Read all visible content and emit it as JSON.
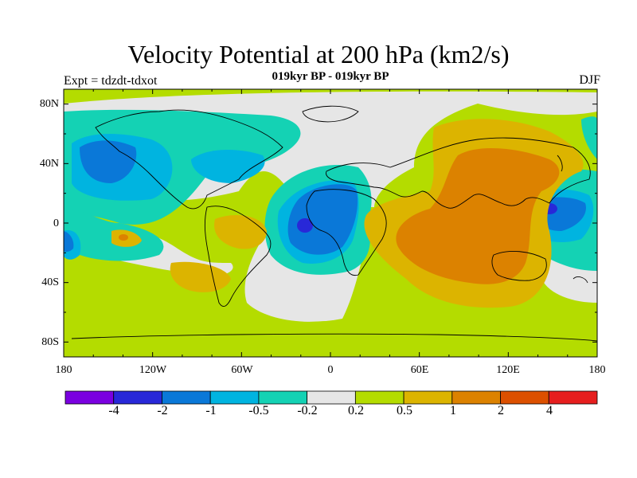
{
  "title": "Velocity Potential at 200 hPa (km2/s)",
  "subtitle": "019kyr BP - 019kyr BP",
  "left_label": "Expt = tdzdt-tdxot",
  "right_label": "DJF",
  "lat_labels": [
    "80N",
    "40N",
    "0",
    "40S",
    "80S"
  ],
  "lon_labels": [
    "180",
    "120W",
    "60W",
    "0",
    "60E",
    "120E",
    "180"
  ],
  "colorbar": {
    "colors": [
      "#7a00e0",
      "#2828d8",
      "#0a78d8",
      "#00b4e0",
      "#14d2b4",
      "#e6e6e6",
      "#b4dc00",
      "#dcb400",
      "#dc8200",
      "#dc5000",
      "#e61e1e"
    ],
    "labels": [
      "-4",
      "-2",
      "-1",
      "-0.5",
      "-0.2",
      "0.2",
      "0.5",
      "1",
      "2",
      "4"
    ]
  },
  "chart_data": {
    "type": "heatmap",
    "field": "velocity potential anomaly",
    "units": "km2/s",
    "season": "DJF",
    "contour_levels": [
      -4,
      -2,
      -1,
      -0.5,
      -0.2,
      0.2,
      0.5,
      1,
      2,
      4
    ],
    "lon_range": [
      -180,
      180
    ],
    "lat_range": [
      -90,
      90
    ],
    "regions": [
      {
        "lon": 130,
        "lat": 10,
        "value": 2.5
      },
      {
        "lon": 75,
        "lat": -10,
        "value": 2.2
      },
      {
        "lon": 105,
        "lat": 35,
        "value": 1.5
      },
      {
        "lon": 75,
        "lat": -45,
        "value": 0.8
      },
      {
        "lon": -65,
        "lat": -25,
        "value": 0.7
      },
      {
        "lon": -55,
        "lat": 0,
        "value": 0.6
      },
      {
        "lon": -150,
        "lat": -10,
        "value": 0.4
      },
      {
        "lon": -10,
        "lat": 0,
        "value": -2.5
      },
      {
        "lon": -130,
        "lat": 40,
        "value": -1.5
      },
      {
        "lon": 150,
        "lat": 10,
        "value": -1.6
      },
      {
        "lon": -160,
        "lat": -15,
        "value": -1.2
      },
      {
        "lon": -60,
        "lat": 40,
        "value": -0.7
      }
    ]
  }
}
